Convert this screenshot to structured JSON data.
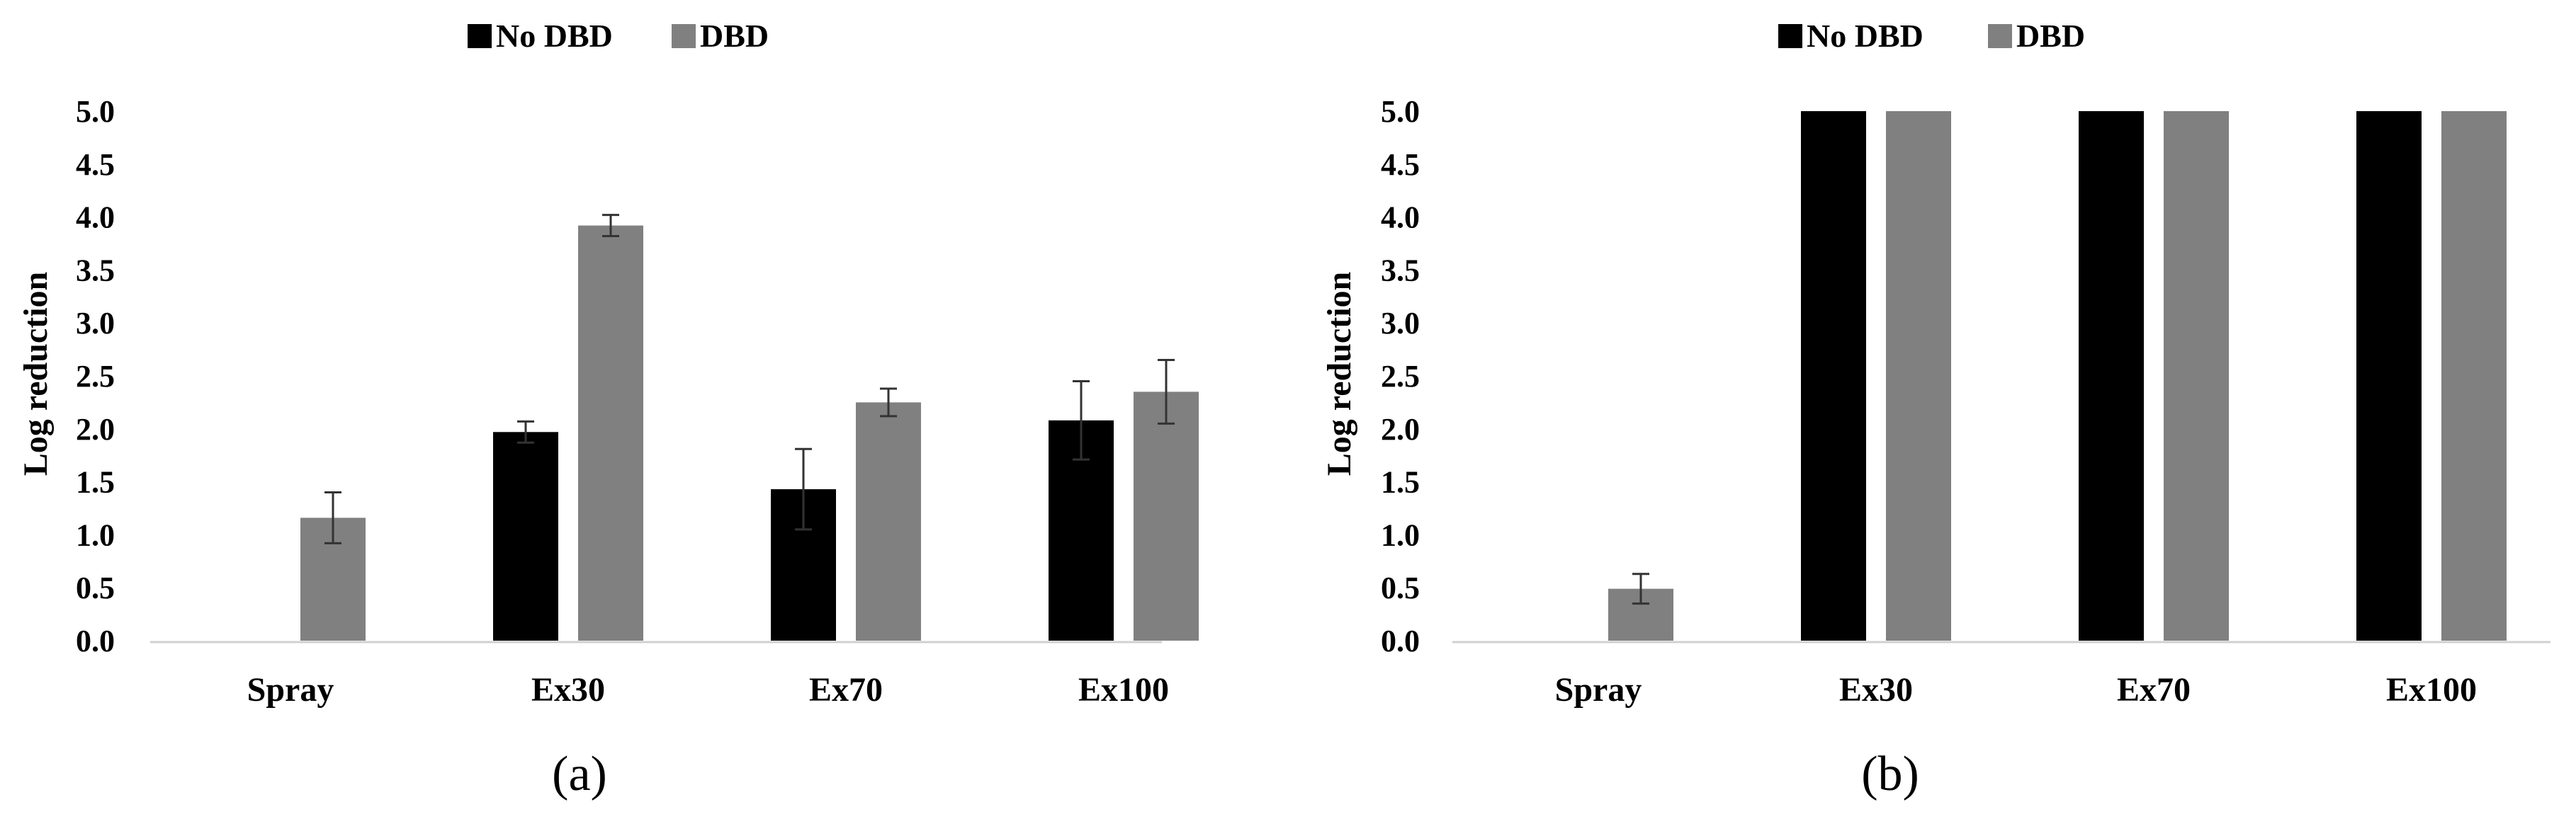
{
  "colors": {
    "no_dbd": "#000000",
    "dbd": "#808080",
    "axis": "#d0d0d0",
    "errorbar": "#333333"
  },
  "chart_data": [
    {
      "type": "bar",
      "panel_label": "(a)",
      "title": "",
      "xlabel": "",
      "ylabel": "Log reduction",
      "ylim": [
        0,
        5.0
      ],
      "yticks": [
        "0.0",
        "0.5",
        "1.0",
        "1.5",
        "2.0",
        "2.5",
        "3.0",
        "3.5",
        "4.0",
        "4.5",
        "5.0"
      ],
      "grid": false,
      "legend_position": "top-center",
      "categories": [
        "Spray",
        "Ex30",
        "Ex70",
        "Ex100"
      ],
      "series": [
        {
          "name": "No DBD",
          "color": "#000000",
          "values": [
            0,
            1.97,
            1.43,
            2.08
          ],
          "errors": [
            0,
            0.1,
            0.38,
            0.37
          ]
        },
        {
          "name": "DBD",
          "color": "#808080",
          "values": [
            1.16,
            3.92,
            2.25,
            2.35
          ],
          "errors": [
            0.24,
            0.1,
            0.13,
            0.3
          ]
        }
      ]
    },
    {
      "type": "bar",
      "panel_label": "(b)",
      "title": "",
      "xlabel": "",
      "ylabel": "Log reduction",
      "ylim": [
        0,
        5.0
      ],
      "yticks": [
        "0.0",
        "0.5",
        "1.0",
        "1.5",
        "2.0",
        "2.5",
        "3.0",
        "3.5",
        "4.0",
        "4.5",
        "5.0"
      ],
      "grid": false,
      "legend_position": "top-center",
      "categories": [
        "Spray",
        "Ex30",
        "Ex70",
        "Ex100"
      ],
      "series": [
        {
          "name": "No DBD",
          "color": "#000000",
          "values": [
            0,
            5.0,
            5.0,
            5.0
          ],
          "errors": [
            0,
            0,
            0,
            0
          ]
        },
        {
          "name": "DBD",
          "color": "#808080",
          "values": [
            0.49,
            5.0,
            5.0,
            5.0
          ],
          "errors": [
            0.14,
            0,
            0,
            0
          ]
        }
      ]
    }
  ]
}
